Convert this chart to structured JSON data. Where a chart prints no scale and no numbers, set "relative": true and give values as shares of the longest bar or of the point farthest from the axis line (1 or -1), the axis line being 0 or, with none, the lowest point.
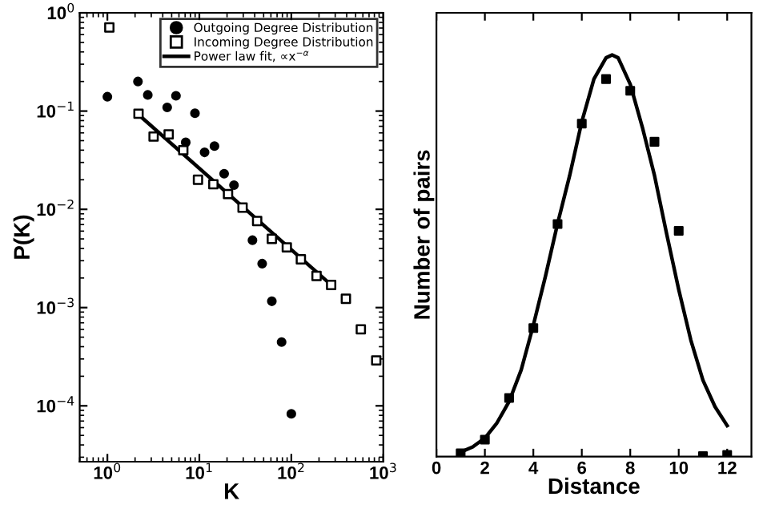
{
  "chart_data": [
    {
      "type": "scatter",
      "xlabel": "K",
      "ylabel": "P(K)",
      "log": "xy",
      "legend": "top right",
      "grid": false,
      "xlim": [
        0.5,
        1000
      ],
      "ylim": [
        2.7e-05,
        1
      ],
      "xticks": [
        {
          "value": 1,
          "label": "10$^{0}$"
        },
        {
          "value": 10,
          "label": "10$^{1}$"
        },
        {
          "value": 100,
          "label": "10$^{2}$"
        },
        {
          "value": 1000,
          "label": "10$^{3}$"
        }
      ],
      "yticks": [
        {
          "value": 0.0001,
          "label": "10$^{−4}$"
        },
        {
          "value": 0.001,
          "label": "10$^{−3}$"
        },
        {
          "value": 0.01,
          "label": "10$^{−2}$"
        },
        {
          "value": 0.1,
          "label": "10$^{−1}$"
        },
        {
          "value": 1,
          "label": "10$^{0}$"
        }
      ],
      "series": [
        {
          "name": "Outgoing Degree Distribution",
          "color": "#000000",
          "marker": "circle",
          "x": [
            1.0,
            2.15,
            2.75,
            4.47,
            5.57,
            8.96,
            7.11,
            11.4,
            14.6,
            18.6,
            23.8,
            37.8,
            48.2,
            61.4,
            78.4,
            100
          ],
          "values": [
            0.14,
            0.2,
            0.146,
            0.109,
            0.143,
            0.095,
            0.048,
            0.038,
            0.044,
            0.023,
            0.0176,
            0.00485,
            0.0028,
            0.00116,
            0.000446,
            8.3e-05
          ]
        },
        {
          "name": "Incoming Degree Distribution",
          "color": "#000000",
          "marker": "square",
          "x": [
            1.05,
            2.18,
            3.18,
            4.64,
            6.69,
            9.66,
            14.2,
            20.5,
            29.5,
            42.5,
            61.4,
            89.3,
            127,
            188,
            271,
            392,
            570,
            838
          ],
          "values": [
            0.71,
            0.094,
            0.055,
            0.058,
            0.04,
            0.02,
            0.018,
            0.0143,
            0.0104,
            0.0076,
            0.005,
            0.0041,
            0.0031,
            0.0021,
            0.0017,
            0.00123,
            0.0006,
            0.00029
          ]
        },
        {
          "name": "Power law fit, ∝x$^{−α}$",
          "type": "line",
          "color": "#000000",
          "marker": "none",
          "line_style": "solid",
          "x": [
            2.18,
            271
          ],
          "values": [
            0.092,
            0.0017
          ]
        }
      ]
    },
    {
      "type": "scatter",
      "xlabel": "Distance",
      "ylabel": "Number of pairs",
      "relative": true,
      "grid": false,
      "xlim": [
        0,
        13
      ],
      "xticks": [
        0,
        2,
        4,
        6,
        8,
        10,
        12
      ],
      "series": [
        {
          "color": "#000000",
          "marker": "square",
          "x": [
            1,
            2,
            3,
            4,
            5,
            6,
            7,
            8,
            9,
            10,
            11,
            12
          ],
          "values": [
            0.008,
            0.042,
            0.146,
            0.32,
            0.579,
            0.829,
            0.94,
            0.911,
            0.784,
            0.562,
            0.001,
            0.004
          ]
        },
        {
          "type": "line",
          "color": "#000000",
          "marker": "none",
          "line_style": "solid",
          "x": [
            1,
            1.5,
            2,
            2.5,
            3,
            3.5,
            4,
            4.5,
            5,
            5.5,
            6,
            6.5,
            7,
            7.25,
            7.5,
            8,
            8.5,
            9,
            9.5,
            10,
            10.5,
            11,
            11.5,
            12
          ],
          "values": [
            0.011,
            0.024,
            0.046,
            0.084,
            0.137,
            0.216,
            0.327,
            0.449,
            0.58,
            0.7,
            0.834,
            0.94,
            0.993,
            1.0,
            0.993,
            0.927,
            0.82,
            0.7,
            0.555,
            0.416,
            0.29,
            0.19,
            0.124,
            0.077
          ]
        }
      ]
    }
  ]
}
